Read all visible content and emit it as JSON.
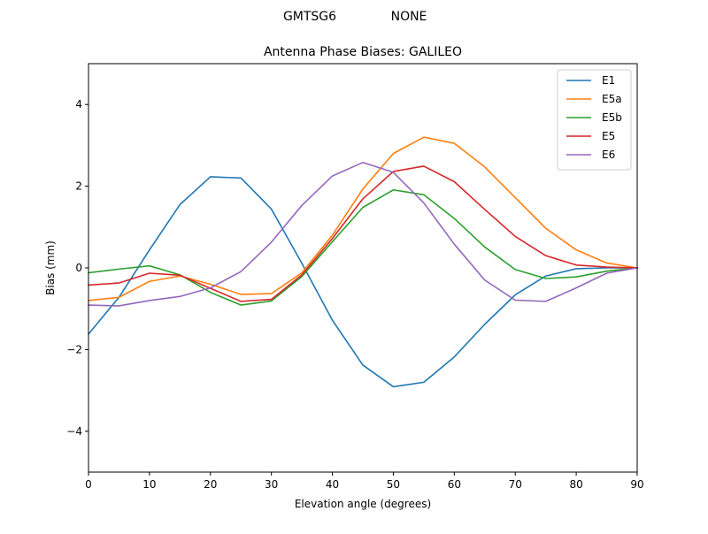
{
  "figure": {
    "suptitle_left": "GMTSG6",
    "suptitle_right": "NONE"
  },
  "chart_data": {
    "type": "line",
    "title": "Antenna Phase Biases: GALILEO",
    "xlabel": "Elevation angle (degrees)",
    "ylabel": "Bias (mm)",
    "xlim": [
      0,
      90
    ],
    "ylim": [
      -5,
      5
    ],
    "xticks": [
      0,
      10,
      20,
      30,
      40,
      50,
      60,
      70,
      80,
      90
    ],
    "yticks": [
      -4,
      -2,
      0,
      2,
      4
    ],
    "xtick_labels": [
      "0",
      "10",
      "20",
      "30",
      "40",
      "50",
      "60",
      "70",
      "80",
      "90"
    ],
    "ytick_labels": [
      "−4",
      "−2",
      "0",
      "2",
      "4"
    ],
    "grid": false,
    "legend_position": "top-right",
    "x": [
      0,
      5,
      10,
      15,
      20,
      25,
      30,
      35,
      40,
      45,
      50,
      55,
      60,
      65,
      70,
      75,
      80,
      85,
      90
    ],
    "series": [
      {
        "name": "E1",
        "color": "#1f77b4",
        "values": [
          -1.62,
          -0.72,
          0.44,
          1.55,
          2.23,
          2.2,
          1.44,
          0.11,
          -1.28,
          -2.38,
          -2.91,
          -2.8,
          -2.18,
          -1.38,
          -0.66,
          -0.2,
          -0.02,
          0.0,
          0.0
        ]
      },
      {
        "name": "E5a",
        "color": "#ff7f0e",
        "values": [
          -0.8,
          -0.72,
          -0.33,
          -0.2,
          -0.4,
          -0.65,
          -0.63,
          -0.12,
          0.8,
          1.93,
          2.8,
          3.2,
          3.05,
          2.47,
          1.72,
          0.97,
          0.44,
          0.12,
          0.0
        ]
      },
      {
        "name": "E5b",
        "color": "#2ca02c",
        "values": [
          -0.12,
          -0.03,
          0.05,
          -0.17,
          -0.6,
          -0.91,
          -0.81,
          -0.21,
          0.64,
          1.48,
          1.91,
          1.79,
          1.21,
          0.51,
          -0.04,
          -0.26,
          -0.22,
          -0.08,
          0.0
        ]
      },
      {
        "name": "E5",
        "color": "#d62728",
        "values": [
          -0.42,
          -0.37,
          -0.13,
          -0.18,
          -0.5,
          -0.82,
          -0.77,
          -0.17,
          0.72,
          1.69,
          2.36,
          2.49,
          2.11,
          1.43,
          0.77,
          0.3,
          0.07,
          0.02,
          0.0
        ]
      },
      {
        "name": "E6",
        "color": "#9467bd",
        "values": [
          -0.91,
          -0.93,
          -0.8,
          -0.7,
          -0.49,
          -0.09,
          0.63,
          1.53,
          2.25,
          2.58,
          2.34,
          1.59,
          0.58,
          -0.3,
          -0.79,
          -0.82,
          -0.49,
          -0.13,
          0.0
        ]
      }
    ]
  }
}
